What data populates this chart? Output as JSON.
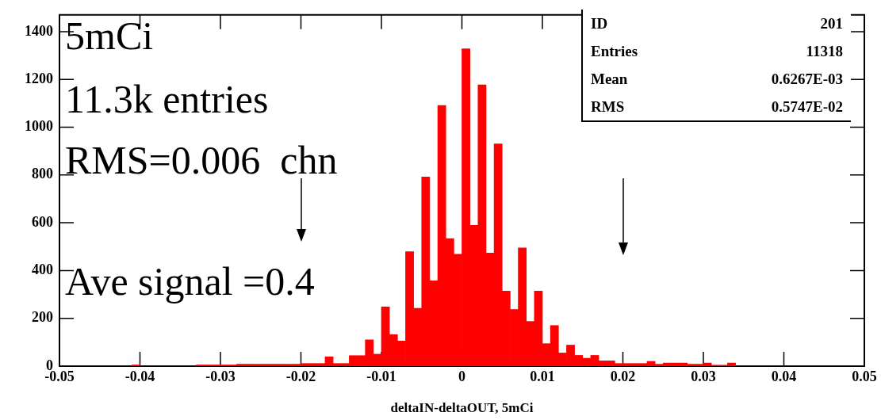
{
  "chart_data": {
    "type": "histogram",
    "xlabel": "deltaIN-deltaOUT, 5mCi",
    "bins": [
      -0.05,
      -0.049,
      -0.048,
      -0.047,
      -0.046,
      -0.045,
      -0.044,
      -0.043,
      -0.042,
      -0.041,
      -0.04,
      -0.039,
      -0.038,
      -0.037,
      -0.036,
      -0.035,
      -0.034,
      -0.033,
      -0.032,
      -0.031,
      -0.03,
      -0.029,
      -0.028,
      -0.027,
      -0.026,
      -0.025,
      -0.024,
      -0.023,
      -0.022,
      -0.021,
      -0.02,
      -0.019,
      -0.018,
      -0.017,
      -0.016,
      -0.015,
      -0.014,
      -0.013,
      -0.012,
      -0.011,
      -0.01,
      -0.009,
      -0.008,
      -0.007,
      -0.006,
      -0.005,
      -0.004,
      -0.003,
      -0.002,
      -0.001,
      0,
      0.001,
      0.002,
      0.003,
      0.004,
      0.005,
      0.006,
      0.007,
      0.008,
      0.009,
      0.01,
      0.011,
      0.012,
      0.013,
      0.014,
      0.015,
      0.016,
      0.017,
      0.018,
      0.019,
      0.02,
      0.021,
      0.022,
      0.023,
      0.024,
      0.025,
      0.026,
      0.027,
      0.028,
      0.029,
      0.03,
      0.031,
      0.032,
      0.033,
      0.034,
      0.035,
      0.036,
      0.037,
      0.038,
      0.039,
      0.04,
      0.041,
      0.042,
      0.043,
      0.044,
      0.045,
      0.046,
      0.047,
      0.048,
      0.049,
      0.05
    ],
    "values": [
      0,
      0,
      0,
      0,
      0,
      0,
      0,
      0,
      0,
      5,
      0,
      0,
      0,
      0,
      0,
      0,
      0,
      5,
      5,
      5,
      5,
      5,
      8,
      8,
      8,
      8,
      8,
      8,
      8,
      8,
      11,
      11,
      11,
      39,
      11,
      11,
      44,
      44,
      110,
      50,
      248,
      132,
      105,
      479,
      242,
      792,
      357,
      1091,
      534,
      468,
      1328,
      589,
      1177,
      473,
      930,
      314,
      237,
      495,
      187,
      314,
      94,
      170,
      55,
      88,
      45,
      33,
      45,
      22,
      22,
      11,
      11,
      11,
      11,
      20,
      8,
      13,
      13,
      13,
      8,
      8,
      13,
      4,
      4,
      13,
      0,
      0,
      0,
      0,
      0,
      0,
      0,
      0,
      0,
      0,
      0,
      0,
      0,
      0,
      0,
      0
    ],
    "color": "#ff0000",
    "xlim": [
      -0.05,
      0.05
    ],
    "xticks": [
      {
        "value": -0.05,
        "label": "-0.05"
      },
      {
        "value": -0.04,
        "label": "-0.04"
      },
      {
        "value": -0.03,
        "label": "-0.03"
      },
      {
        "value": -0.02,
        "label": "-0.02"
      },
      {
        "value": -0.01,
        "label": "-0.01"
      },
      0,
      {
        "value": 0.01,
        "label": "0.01"
      },
      {
        "value": 0.02,
        "label": "0.02"
      },
      {
        "value": 0.03,
        "label": "0.03"
      },
      {
        "value": 0.04,
        "label": "0.04"
      },
      {
        "value": 0.05,
        "label": "0.05"
      }
    ],
    "ylim": [
      0,
      1470
    ],
    "yticks": [
      0,
      200,
      400,
      600,
      800,
      1000,
      1200,
      1400
    ],
    "grid": false,
    "legend": false,
    "annotations": [
      "ID",
      "201",
      "Entries",
      "11318",
      "Mean",
      "0.6267E-03",
      "RMS",
      "0.5747E-02",
      "5mCi",
      "11.3k entries",
      "RMS=0.006  chn",
      "Ave signal =0.4"
    ]
  }
}
